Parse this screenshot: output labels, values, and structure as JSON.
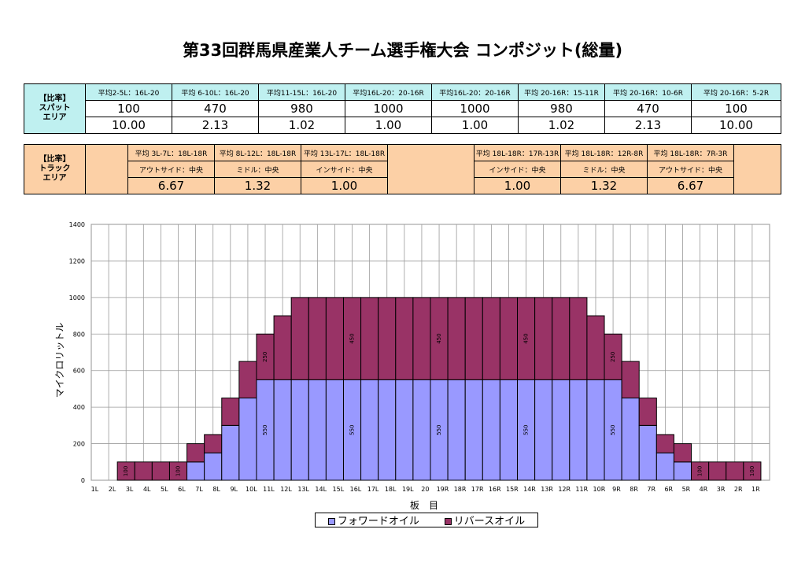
{
  "title": "第33回群馬県産業人チーム選手権大会 コンポジット(総量)",
  "spot": {
    "label_line1": "【比率】",
    "label_line2": "スパット",
    "label_line3": "エリア",
    "headers": [
      "平均2-5L：16L-20",
      "平均 6-10L：16L-20",
      "平均11-15L：16L-20",
      "平均16L-20：20-16R",
      "平均16L-20：20-16R",
      "平均 20-16R：15-11R",
      "平均 20-16R：10-6R",
      "平均 20-16R：5-2R"
    ],
    "values": [
      "100",
      "470",
      "980",
      "1000",
      "1000",
      "980",
      "470",
      "100"
    ],
    "ratios": [
      "10.00",
      "2.13",
      "1.02",
      "1.00",
      "1.00",
      "1.02",
      "2.13",
      "10.00"
    ]
  },
  "track": {
    "label_line1": "【比率】",
    "label_line2": "トラック",
    "label_line3": "エリア",
    "left_headers": [
      "平均 3L-7L：18L-18R",
      "平均 8L-12L：18L-18R",
      "平均 13L-17L：18L-18R"
    ],
    "right_headers": [
      "平均 18L-18R：17R-13R",
      "平均 18L-18R：12R-8R",
      "平均 18L-18R：7R-3R"
    ],
    "left_sub": [
      "アウトサイド：中央",
      "ミドル：中央",
      "インサイド：中央"
    ],
    "right_sub": [
      "インサイド：中央",
      "ミドル：中央",
      "アウトサイド：中央"
    ],
    "left_values": [
      "6.67",
      "1.32",
      "1.00"
    ],
    "right_values": [
      "1.00",
      "1.32",
      "6.67"
    ]
  },
  "legend": {
    "forward": "フォワードオイル",
    "reverse": "リバースオイル"
  },
  "colors": {
    "forward": "#9999ff",
    "reverse": "#993366",
    "spot_bg": "#bff0f0",
    "track_bg": "#fcd0a6"
  },
  "chart_data": {
    "type": "bar",
    "stacked": true,
    "categories": [
      "1L",
      "2L",
      "3L",
      "4L",
      "5L",
      "6L",
      "7L",
      "8L",
      "9L",
      "10L",
      "11L",
      "12L",
      "13L",
      "14L",
      "15L",
      "16L",
      "17L",
      "18L",
      "19L",
      "20",
      "19R",
      "18R",
      "17R",
      "16R",
      "15R",
      "14R",
      "13R",
      "12R",
      "11R",
      "10R",
      "9R",
      "8R",
      "7R",
      "6R",
      "5R",
      "4R",
      "3R",
      "2R",
      "1R"
    ],
    "series": [
      {
        "name": "フォワードオイル",
        "values": [
          0,
          0,
          0,
          0,
          0,
          100,
          150,
          300,
          450,
          550,
          550,
          550,
          550,
          550,
          550,
          550,
          550,
          550,
          550,
          550,
          550,
          550,
          550,
          550,
          550,
          550,
          550,
          550,
          550,
          550,
          450,
          300,
          150,
          100,
          0,
          0,
          0,
          0,
          0
        ]
      },
      {
        "name": "リバースオイル",
        "values": [
          0,
          100,
          100,
          100,
          100,
          100,
          100,
          150,
          200,
          250,
          350,
          450,
          450,
          450,
          450,
          450,
          450,
          450,
          450,
          450,
          450,
          450,
          450,
          450,
          450,
          450,
          450,
          450,
          350,
          250,
          200,
          150,
          100,
          100,
          100,
          100,
          100,
          100,
          0
        ]
      }
    ],
    "data_labels": [
      {
        "index": 1,
        "series": 1,
        "text": "100"
      },
      {
        "index": 4,
        "series": 1,
        "text": "100"
      },
      {
        "index": 9,
        "series": 0,
        "text": "550"
      },
      {
        "index": 9,
        "series": 1,
        "text": "250"
      },
      {
        "index": 14,
        "series": 0,
        "text": "550"
      },
      {
        "index": 14,
        "series": 1,
        "text": "450"
      },
      {
        "index": 19,
        "series": 0,
        "text": "550"
      },
      {
        "index": 19,
        "series": 1,
        "text": "450"
      },
      {
        "index": 24,
        "series": 0,
        "text": "550"
      },
      {
        "index": 24,
        "series": 1,
        "text": "450"
      },
      {
        "index": 29,
        "series": 0,
        "text": "550"
      },
      {
        "index": 29,
        "series": 1,
        "text": "250"
      },
      {
        "index": 34,
        "series": 1,
        "text": "100"
      },
      {
        "index": 37,
        "series": 1,
        "text": "100"
      }
    ],
    "xlabel": "板　目",
    "ylabel": "マイクロリットル",
    "ylim": [
      0,
      1400
    ],
    "yticks": [
      0,
      200,
      400,
      600,
      800,
      1000,
      1200,
      1400
    ],
    "grid": true,
    "legend_position": "bottom"
  }
}
